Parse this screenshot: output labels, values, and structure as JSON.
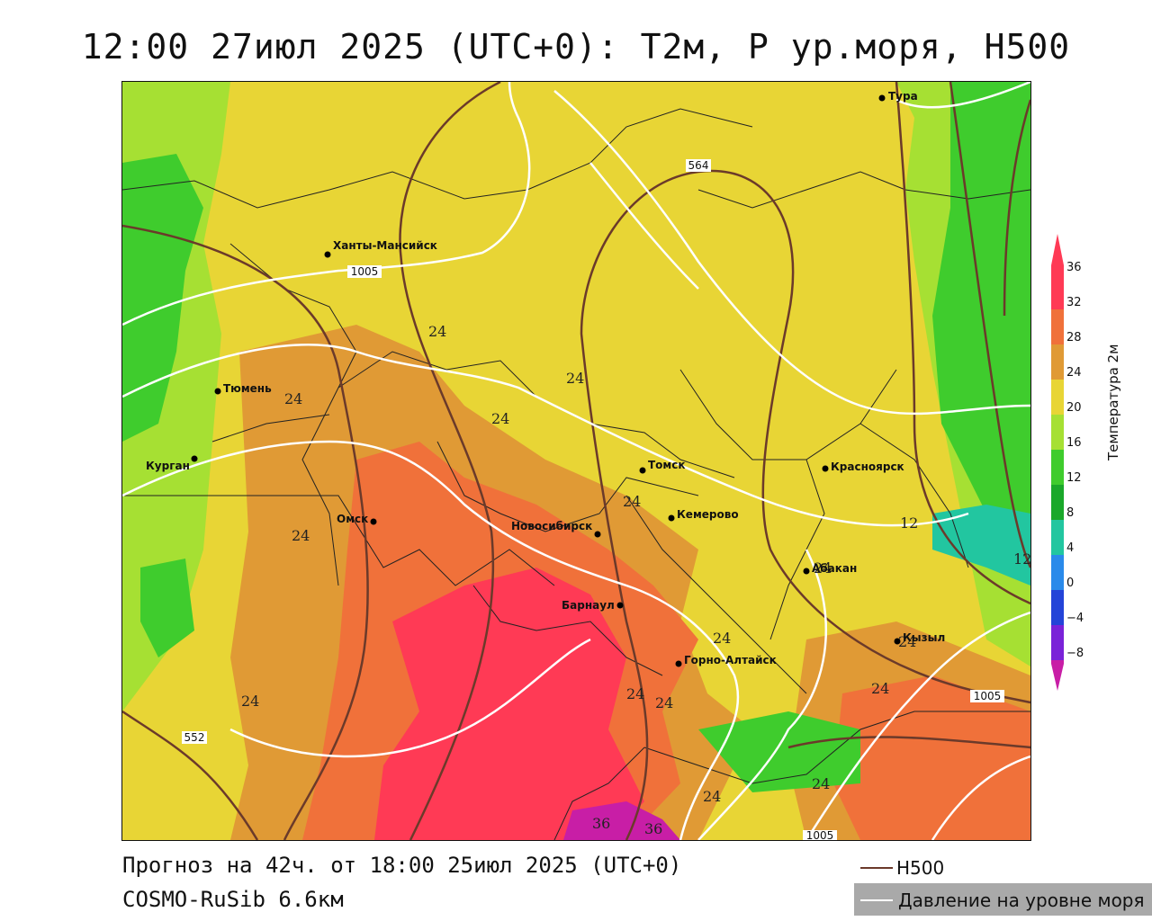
{
  "title": "12:00 27июл 2025 (UTC+0): Т2м, P ур.моря, H500",
  "footer": {
    "forecast": "Прогноз на 42ч. от 18:00 25июл 2025 (UTC+0)",
    "model": "COSMO-RuSib 6.6км"
  },
  "legend": {
    "h500": "H500",
    "pressure": "Давление на уровне моря",
    "h500_color": "#6b3a2a",
    "pressure_color": "#ffffff"
  },
  "colorbar": {
    "label": "Температура 2м",
    "ticks": [
      "36",
      "32",
      "28",
      "24",
      "20",
      "16",
      "12",
      "8",
      "4",
      "0",
      "−4",
      "−8"
    ],
    "colors": [
      "#ff3a55",
      "#f0713a",
      "#e09a35",
      "#e8d535",
      "#a6e033",
      "#3fcc2d",
      "#1aa82a",
      "#22c6a0",
      "#2a8aea",
      "#2444d8",
      "#7a22d8",
      "#c81ea6"
    ]
  },
  "cities": [
    {
      "name": "Тура"
    },
    {
      "name": "Ханты-Мансийск"
    },
    {
      "name": "Тюмень"
    },
    {
      "name": "Курган"
    },
    {
      "name": "Омск"
    },
    {
      "name": "Новосибирск"
    },
    {
      "name": "Томск"
    },
    {
      "name": "Кемерово"
    },
    {
      "name": "Красноярск"
    },
    {
      "name": "Абакан"
    },
    {
      "name": "Барнаул"
    },
    {
      "name": "Горно-Алтайск"
    },
    {
      "name": "Кызыл"
    }
  ],
  "h500_labels": [
    "564",
    "552"
  ],
  "pressure_labels": [
    "1005",
    "1005",
    "1005"
  ],
  "temp_labels": [
    "24",
    "24",
    "24",
    "24",
    "24",
    "24",
    "24",
    "24",
    "24",
    "24",
    "24",
    "24",
    "24",
    "24",
    "24",
    "12",
    "12",
    "36",
    "36"
  ]
}
